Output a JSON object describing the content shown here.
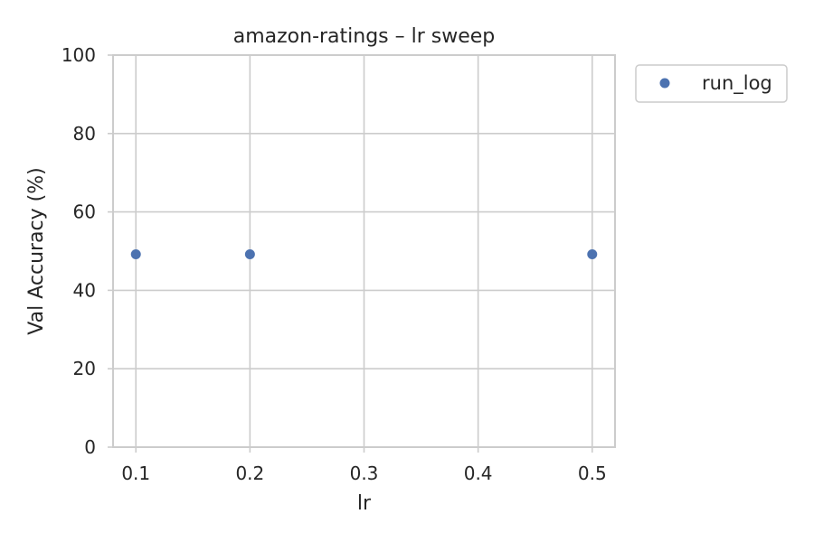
{
  "chart_data": {
    "type": "scatter",
    "title": "amazon-ratings – lr sweep",
    "xlabel": "lr",
    "ylabel": "Val Accuracy (%)",
    "xlim": [
      0.08,
      0.52
    ],
    "ylim": [
      0,
      100
    ],
    "x_ticks": [
      0.1,
      0.2,
      0.3,
      0.4,
      0.5
    ],
    "x_tick_labels": [
      "0.1",
      "0.2",
      "0.3",
      "0.4",
      "0.5"
    ],
    "y_ticks": [
      0,
      20,
      40,
      60,
      80,
      100
    ],
    "y_tick_labels": [
      "0",
      "20",
      "40",
      "60",
      "80",
      "100"
    ],
    "grid": true,
    "legend_position": "outside top-right",
    "series": [
      {
        "name": "run_log",
        "color": "#4c72b0",
        "marker": "circle",
        "points": [
          {
            "x": 0.1,
            "y": 49.2
          },
          {
            "x": 0.2,
            "y": 49.2
          },
          {
            "x": 0.5,
            "y": 49.2
          }
        ]
      }
    ]
  }
}
